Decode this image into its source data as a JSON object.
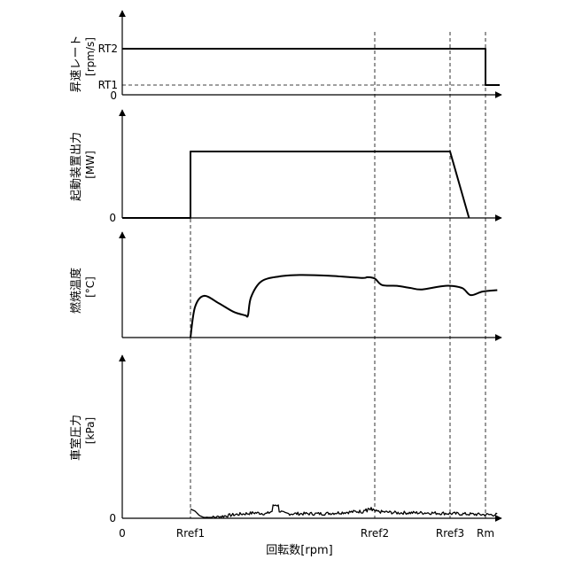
{
  "chart_data": {
    "type": "line",
    "x_axis": {
      "label": "回転数[rpm]",
      "origin_label": "0",
      "ticks": [
        "Rref1",
        "Rref2",
        "Rref3",
        "Rm"
      ]
    },
    "panels": [
      {
        "id": "rate",
        "ylabel": "昇速レート",
        "yunit": "[rpm/s]",
        "yticks": [
          "RT2",
          "RT1",
          "0"
        ],
        "series": [
          {
            "points": [
              [
                "0",
                "RT2"
              ],
              [
                "Rm",
                "RT2"
              ],
              [
                "Rm",
                "RT1"
              ]
            ]
          }
        ]
      },
      {
        "id": "output",
        "ylabel": "起動装置出力",
        "yunit": "[MW]",
        "yticks": [
          "0"
        ],
        "series": [
          {
            "points": [
              [
                "0",
                0
              ],
              [
                "Rref1",
                0
              ],
              [
                "Rref1",
                1
              ],
              [
                "Rref3",
                1
              ],
              [
                0.944,
                0
              ]
            ]
          }
        ]
      },
      {
        "id": "temperature",
        "ylabel": "燃焼温度",
        "yunit": "[°C]",
        "yticks": [],
        "series": [
          {
            "points": [
              [
                0.0,
                0.0
              ],
              [
                0.015,
                0.42
              ],
              [
                0.045,
                0.58
              ],
              [
                0.095,
                0.48
              ],
              [
                0.145,
                0.36
              ],
              [
                0.185,
                0.31
              ],
              [
                0.195,
                0.31
              ],
              [
                0.205,
                0.56
              ],
              [
                0.24,
                0.78
              ],
              [
                0.3,
                0.85
              ],
              [
                0.37,
                0.87
              ],
              [
                0.47,
                0.86
              ],
              [
                0.58,
                0.83
              ],
              [
                0.6,
                0.84
              ],
              [
                0.625,
                0.82
              ],
              [
                0.65,
                0.73
              ],
              [
                0.7,
                0.72
              ],
              [
                0.745,
                0.69
              ],
              [
                0.785,
                0.67
              ],
              [
                0.865,
                0.72
              ],
              [
                0.92,
                0.69
              ],
              [
                0.95,
                0.59
              ],
              [
                0.99,
                0.64
              ],
              [
                1.04,
                0.66
              ]
            ]
          }
        ]
      },
      {
        "id": "pressure",
        "ylabel": "車室圧力",
        "yunit": "[kPa]",
        "yticks": [
          "0"
        ],
        "series": [
          {
            "points": [
              [
                0.0,
                0.09
              ],
              [
                0.015,
                0.07
              ],
              [
                0.03,
                0.02
              ],
              [
                0.045,
                0.0
              ],
              [
                0.08,
                0.0
              ],
              [
                0.15,
                0.03
              ],
              [
                0.22,
                0.05
              ],
              [
                0.26,
                0.04
              ],
              [
                0.29,
                0.09
              ],
              [
                0.32,
                0.04
              ],
              [
                0.45,
                0.04
              ],
              [
                0.6,
                0.07
              ],
              [
                0.7,
                0.05
              ],
              [
                0.8,
                0.05
              ],
              [
                0.9,
                0.04
              ],
              [
                1.0,
                0.03
              ],
              [
                1.04,
                0.03
              ]
            ]
          }
        ]
      }
    ]
  }
}
